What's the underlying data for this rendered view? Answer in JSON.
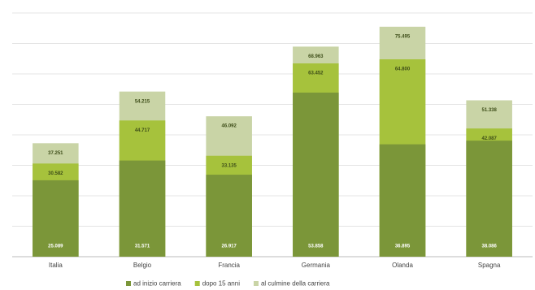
{
  "chart_data": {
    "type": "overlap_bar",
    "categories": [
      "Italia",
      "Belgio",
      "Francia",
      "Germania",
      "Olanda",
      "Spagna"
    ],
    "series": [
      {
        "name": "ad inizio carriera",
        "color": "#7b9639",
        "values": [
          25089,
          31571,
          26917,
          53858,
          36895,
          38086
        ],
        "value_labels": [
          "25.089",
          "31.571",
          "26.917",
          "53.858",
          "36.895",
          "38.086"
        ]
      },
      {
        "name": "dopo 15 anni",
        "color": "#a6c23c",
        "values": [
          30582,
          44717,
          33135,
          63452,
          64800,
          42087
        ],
        "value_labels": [
          "30.582",
          "44.717",
          "33.135",
          "63.452",
          "64.800",
          "42.087"
        ]
      },
      {
        "name": "al culmine della carriera",
        "color": "#c9d4a6",
        "values": [
          37251,
          54215,
          46092,
          68963,
          75495,
          51338
        ],
        "value_labels": [
          "37.251",
          "54.215",
          "46.092",
          "68.963",
          "75.495",
          "51.338"
        ]
      }
    ],
    "ylim": [
      0,
      80000
    ],
    "yticks": [
      0,
      10000,
      20000,
      30000,
      40000,
      50000,
      60000,
      70000,
      80000
    ],
    "grid": true,
    "legend": "bottom"
  }
}
